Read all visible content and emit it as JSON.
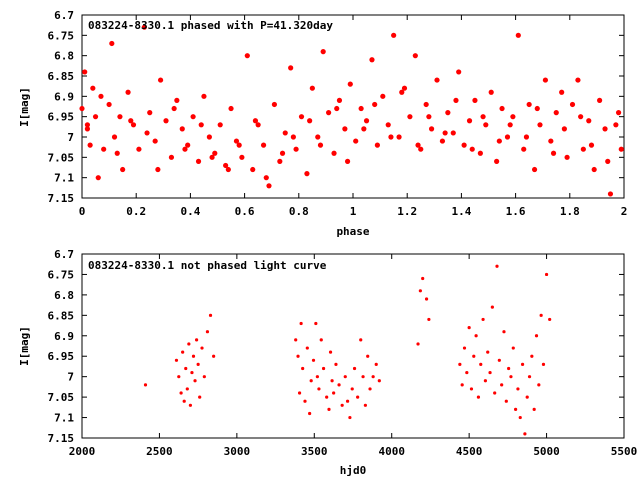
{
  "chart_data": [
    {
      "type": "scatter",
      "title": "083224-8330.1 phased with P=41.320day",
      "xlabel": "phase",
      "ylabel": "I[mag]",
      "xlim": [
        0,
        2
      ],
      "ylim": [
        7.15,
        6.7
      ],
      "y_inverted": true,
      "grid": false,
      "legend": "none",
      "marker_color": "#ff0000",
      "x_ticks": [
        "0",
        "0.2",
        "0.4",
        "0.6",
        "0.8",
        "1",
        "1.2",
        "1.4",
        "1.6",
        "1.8",
        "2"
      ],
      "y_ticks": [
        "6.7",
        "6.75",
        "6.8",
        "6.85",
        "6.9",
        "6.95",
        "7",
        "7.05",
        "7.1",
        "7.15"
      ],
      "series": [
        {
          "x": [
            0.0,
            0.01,
            0.02,
            0.03,
            0.04,
            0.05,
            0.06,
            0.08,
            0.1,
            0.11,
            0.12,
            0.14,
            0.15,
            0.17,
            0.19,
            0.21,
            0.23,
            0.25,
            0.27,
            0.29,
            0.31,
            0.33,
            0.35,
            0.37,
            0.39,
            0.41,
            0.43,
            0.45,
            0.47,
            0.49,
            0.51,
            0.53,
            0.55,
            0.57,
            0.59,
            0.61,
            0.63,
            0.65,
            0.67,
            0.69,
            0.71,
            0.73,
            0.75,
            0.77,
            0.79,
            0.81,
            0.83,
            0.85,
            0.87,
            0.89,
            0.91,
            0.93,
            0.95,
            0.97,
            0.99,
            1.01,
            1.03,
            1.05,
            1.07,
            1.09,
            1.11,
            1.13,
            1.15,
            1.17,
            1.19,
            1.21,
            1.23,
            1.25,
            1.27,
            1.29,
            1.31,
            1.33,
            1.35,
            1.37,
            1.39,
            1.41,
            1.43,
            1.45,
            1.47,
            1.49,
            1.51,
            1.53,
            1.55,
            1.57,
            1.59,
            1.61,
            1.63,
            1.65,
            1.67,
            1.69,
            1.71,
            1.73,
            1.75,
            1.77,
            1.79,
            1.81,
            1.83,
            1.85,
            1.87,
            1.89,
            1.91,
            1.93,
            1.95,
            1.97,
            1.99,
            0.02,
            0.07,
            0.13,
            0.18,
            0.24,
            0.28,
            0.34,
            0.38,
            0.44,
            0.48,
            0.54,
            0.58,
            0.64,
            0.68,
            0.74,
            0.78,
            0.84,
            0.88,
            0.94,
            0.98,
            1.04,
            1.08,
            1.14,
            1.18,
            1.24,
            1.28,
            1.34,
            1.38,
            1.44,
            1.48,
            1.54,
            1.58,
            1.64,
            1.68,
            1.74,
            1.78,
            1.84,
            1.88,
            1.94,
            1.98
          ],
          "y": [
            6.93,
            6.84,
            6.97,
            7.02,
            6.88,
            6.95,
            7.1,
            7.03,
            6.92,
            6.77,
            7.0,
            6.95,
            7.08,
            6.89,
            6.97,
            7.03,
            6.73,
            6.94,
            7.01,
            6.86,
            6.96,
            7.05,
            6.91,
            6.98,
            7.02,
            6.95,
            7.06,
            6.9,
            7.0,
            7.04,
            6.97,
            7.07,
            6.93,
            7.01,
            7.05,
            6.8,
            7.08,
            6.97,
            7.02,
            7.12,
            6.92,
            7.06,
            6.99,
            6.83,
            7.03,
            6.95,
            7.09,
            6.88,
            7.0,
            6.79,
            6.94,
            7.04,
            6.91,
            6.98,
            6.87,
            7.01,
            6.93,
            6.96,
            6.81,
            7.02,
            6.9,
            6.97,
            6.75,
            7.0,
            6.88,
            6.95,
            6.8,
            7.03,
            6.92,
            6.98,
            6.86,
            7.01,
            6.94,
            6.99,
            6.84,
            7.02,
            6.96,
            6.91,
            7.04,
            6.97,
            6.89,
            7.06,
            6.93,
            7.0,
            6.95,
            6.75,
            7.03,
            6.92,
            7.08,
            6.97,
            6.86,
            7.01,
            6.94,
            6.89,
            7.05,
            6.92,
            6.86,
            7.03,
            6.96,
            7.08,
            6.91,
            6.98,
            7.14,
            6.97,
            7.03,
            6.98,
            6.9,
            7.04,
            6.96,
            6.99,
            7.08,
            6.93,
            7.03,
            6.97,
            7.05,
            7.08,
            7.02,
            6.96,
            7.1,
            7.04,
            7.0,
            6.96,
            7.02,
            6.93,
            7.06,
            6.98,
            6.92,
            7.0,
            6.89,
            7.02,
            6.95,
            6.99,
            6.91,
            7.03,
            6.95,
            7.01,
            6.97,
            7.0,
            6.93,
            7.04,
            6.98,
            6.95,
            7.02,
            7.06,
            6.94
          ]
        }
      ]
    },
    {
      "type": "scatter",
      "title": "083224-8330.1 not phased light curve",
      "xlabel": "hjd0",
      "ylabel": "I[mag]",
      "xlim": [
        2000,
        5500
      ],
      "ylim": [
        7.15,
        6.7
      ],
      "y_inverted": true,
      "grid": false,
      "legend": "none",
      "marker_color": "#ff0000",
      "x_ticks": [
        "2000",
        "2500",
        "3000",
        "3500",
        "4000",
        "4500",
        "5000",
        "5500"
      ],
      "y_ticks": [
        "6.7",
        "6.75",
        "6.8",
        "6.85",
        "6.9",
        "6.95",
        "7",
        "7.05",
        "7.1",
        "7.15"
      ],
      "series": [
        {
          "x": [
            2410,
            2610,
            2625,
            2640,
            2650,
            2660,
            2670,
            2680,
            2690,
            2700,
            2710,
            2720,
            2730,
            2740,
            2750,
            2760,
            2775,
            2790,
            2810,
            2830,
            2850,
            3380,
            3395,
            3405,
            3415,
            3425,
            3440,
            3455,
            3470,
            3480,
            3495,
            3510,
            3520,
            3530,
            3545,
            3560,
            3580,
            3595,
            3605,
            3615,
            3625,
            3640,
            3660,
            3680,
            3700,
            3715,
            3730,
            3745,
            3760,
            3780,
            3800,
            3815,
            3830,
            3845,
            3860,
            3880,
            3900,
            3920,
            4170,
            4185,
            4200,
            4225,
            4240,
            4440,
            4455,
            4470,
            4485,
            4500,
            4515,
            4530,
            4545,
            4560,
            4575,
            4590,
            4605,
            4620,
            4635,
            4650,
            4665,
            4680,
            4695,
            4710,
            4725,
            4740,
            4755,
            4770,
            4785,
            4800,
            4815,
            4830,
            4845,
            4860,
            4875,
            4890,
            4905,
            4920,
            4935,
            4950,
            4965,
            4980,
            5000,
            5020
          ],
          "y": [
            7.02,
            6.96,
            7.0,
            7.04,
            6.94,
            7.06,
            6.98,
            7.03,
            6.92,
            7.07,
            6.99,
            6.95,
            7.01,
            6.91,
            6.97,
            7.05,
            6.93,
            7.0,
            6.89,
            6.85,
            6.95,
            6.91,
            6.95,
            7.04,
            6.87,
            6.98,
            7.06,
            6.93,
            7.09,
            7.01,
            6.96,
            6.87,
            7.0,
            7.03,
            6.91,
            6.98,
            7.05,
            7.08,
            6.94,
            7.01,
            7.04,
            6.97,
            7.02,
            7.07,
            7.0,
            7.06,
            7.1,
            7.03,
            6.98,
            7.05,
            6.91,
            7.0,
            7.07,
            6.95,
            7.03,
            7.0,
            6.97,
            7.01,
            6.92,
            6.79,
            6.76,
            6.81,
            6.86,
            6.97,
            7.02,
            6.93,
            6.99,
            6.88,
            7.03,
            6.95,
            6.9,
            7.05,
            6.97,
            6.86,
            7.01,
            6.94,
            6.99,
            6.83,
            7.04,
            6.73,
            6.96,
            7.02,
            6.89,
            7.06,
            6.98,
            7.0,
            6.93,
            7.08,
            7.03,
            7.1,
            6.97,
            7.14,
            7.05,
            7.0,
            6.95,
            7.08,
            6.9,
            7.02,
            6.85,
            6.97,
            6.75,
            6.86
          ]
        }
      ]
    }
  ]
}
